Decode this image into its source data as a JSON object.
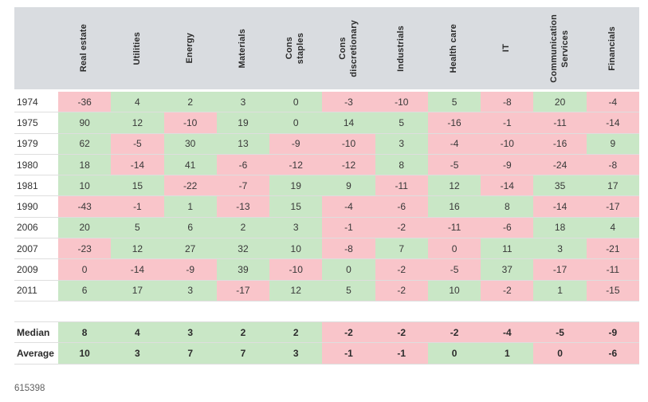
{
  "chart_data": {
    "type": "table",
    "subtype": "heatmap-table",
    "columns": [
      "Real estate",
      "Utilities",
      "Energy",
      "Materials",
      "Cons\nstaples",
      "Cons\ndiscretionary",
      "Industrials",
      "Health care",
      "IT",
      "Communication\nServices",
      "Financials"
    ],
    "rows": [
      {
        "label": "1974",
        "values": [
          -36,
          4,
          2,
          3,
          0,
          -3,
          -10,
          5,
          -8,
          20,
          -4
        ],
        "colors": [
          "r",
          "g",
          "g",
          "g",
          "g",
          "r",
          "r",
          "g",
          "r",
          "g",
          "r"
        ]
      },
      {
        "label": "1975",
        "values": [
          90,
          12,
          -10,
          19,
          0,
          14,
          5,
          -16,
          -1,
          -11,
          -14
        ],
        "colors": [
          "g",
          "g",
          "r",
          "g",
          "g",
          "g",
          "g",
          "r",
          "r",
          "r",
          "r"
        ]
      },
      {
        "label": "1979",
        "values": [
          62,
          -5,
          30,
          13,
          -9,
          -10,
          3,
          -4,
          -10,
          -16,
          9
        ],
        "colors": [
          "g",
          "r",
          "g",
          "g",
          "r",
          "r",
          "g",
          "r",
          "r",
          "r",
          "g"
        ]
      },
      {
        "label": "1980",
        "values": [
          18,
          -14,
          41,
          -6,
          -12,
          -12,
          8,
          -5,
          -9,
          -24,
          -8
        ],
        "colors": [
          "g",
          "r",
          "g",
          "r",
          "r",
          "r",
          "g",
          "r",
          "r",
          "r",
          "r"
        ]
      },
      {
        "label": "1981",
        "values": [
          10,
          15,
          -22,
          -7,
          19,
          9,
          -11,
          12,
          -14,
          35,
          17
        ],
        "colors": [
          "g",
          "g",
          "r",
          "r",
          "g",
          "g",
          "r",
          "g",
          "r",
          "g",
          "g"
        ]
      },
      {
        "label": "1990",
        "values": [
          -43,
          -1,
          1,
          -13,
          15,
          -4,
          -6,
          16,
          8,
          -14,
          -17
        ],
        "colors": [
          "r",
          "r",
          "g",
          "r",
          "g",
          "r",
          "r",
          "g",
          "g",
          "r",
          "r"
        ]
      },
      {
        "label": "2006",
        "values": [
          20,
          5,
          6,
          2,
          3,
          -1,
          -2,
          -11,
          -6,
          18,
          4
        ],
        "colors": [
          "g",
          "g",
          "g",
          "g",
          "g",
          "r",
          "r",
          "r",
          "r",
          "g",
          "g"
        ]
      },
      {
        "label": "2007",
        "values": [
          -23,
          12,
          27,
          32,
          10,
          -8,
          7,
          0,
          11,
          3,
          -21
        ],
        "colors": [
          "r",
          "g",
          "g",
          "g",
          "g",
          "r",
          "g",
          "r",
          "g",
          "g",
          "r"
        ]
      },
      {
        "label": "2009",
        "values": [
          0,
          -14,
          -9,
          39,
          -10,
          0,
          -2,
          -5,
          37,
          -17,
          -11
        ],
        "colors": [
          "r",
          "r",
          "r",
          "g",
          "r",
          "g",
          "r",
          "r",
          "g",
          "r",
          "r"
        ]
      },
      {
        "label": "2011",
        "values": [
          6,
          17,
          3,
          -17,
          12,
          5,
          -2,
          10,
          -2,
          1,
          -15
        ],
        "colors": [
          "g",
          "g",
          "g",
          "r",
          "g",
          "g",
          "r",
          "g",
          "r",
          "g",
          "r"
        ]
      }
    ],
    "summary_rows": [
      {
        "label": "Median",
        "values": [
          8,
          4,
          3,
          2,
          2,
          -2,
          -2,
          -2,
          -4,
          -5,
          -9
        ],
        "colors": [
          "g",
          "g",
          "g",
          "g",
          "g",
          "r",
          "r",
          "r",
          "r",
          "r",
          "r"
        ]
      },
      {
        "label": "Average",
        "values": [
          10,
          3,
          7,
          7,
          3,
          -1,
          -1,
          0,
          1,
          0,
          -6
        ],
        "colors": [
          "g",
          "g",
          "g",
          "g",
          "g",
          "r",
          "r",
          "g",
          "g",
          "r",
          "r"
        ]
      }
    ],
    "legend_position": "none",
    "grid": "row-separators"
  },
  "colors": {
    "positive_cell": "#c9e7c6",
    "negative_cell": "#f9c5ca",
    "header_bg": "#d9dce0"
  },
  "footer": {
    "note": "615398"
  }
}
